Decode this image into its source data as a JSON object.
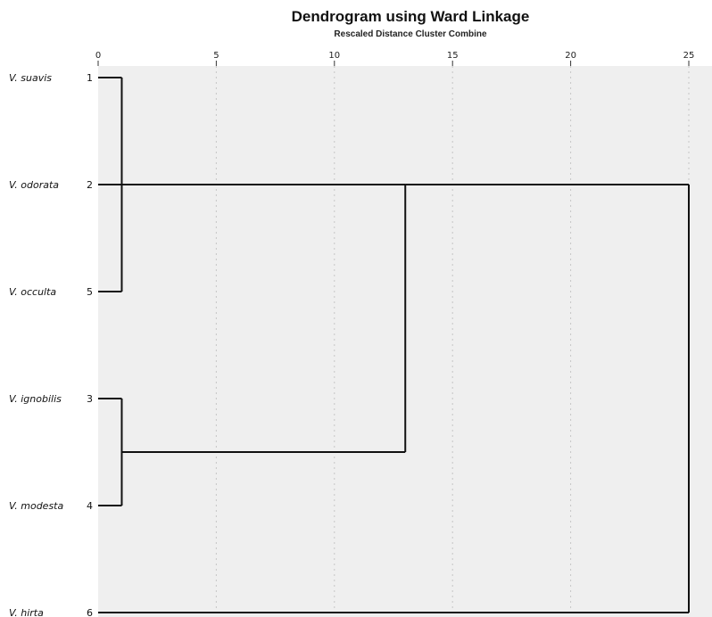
{
  "chart_data": {
    "type": "dendrogram",
    "title": "Dendrogram using Ward Linkage",
    "subtitle": "Rescaled Distance Cluster Combine",
    "x_axis": {
      "ticks": [
        0,
        5,
        10,
        15,
        20,
        25
      ],
      "range": [
        0,
        25
      ],
      "position": "top"
    },
    "grid": true,
    "leaves": [
      {
        "name": "V. suavis",
        "case": "1"
      },
      {
        "name": "V. odorata",
        "case": "2"
      },
      {
        "name": "V. occulta",
        "case": "5"
      },
      {
        "name": "V. ignobilis",
        "case": "3"
      },
      {
        "name": "V. modesta",
        "case": "4"
      },
      {
        "name": "V. hirta",
        "case": "6"
      }
    ],
    "merges": [
      {
        "id": "A",
        "children": [
          0,
          2
        ],
        "distance": 1
      },
      {
        "id": "B",
        "children": [
          3,
          4
        ],
        "distance": 1
      },
      {
        "id": "C",
        "children": [
          "A",
          1,
          "B"
        ],
        "distance": 13
      },
      {
        "id": "D",
        "children": [
          "C",
          5
        ],
        "distance": 25
      }
    ]
  }
}
